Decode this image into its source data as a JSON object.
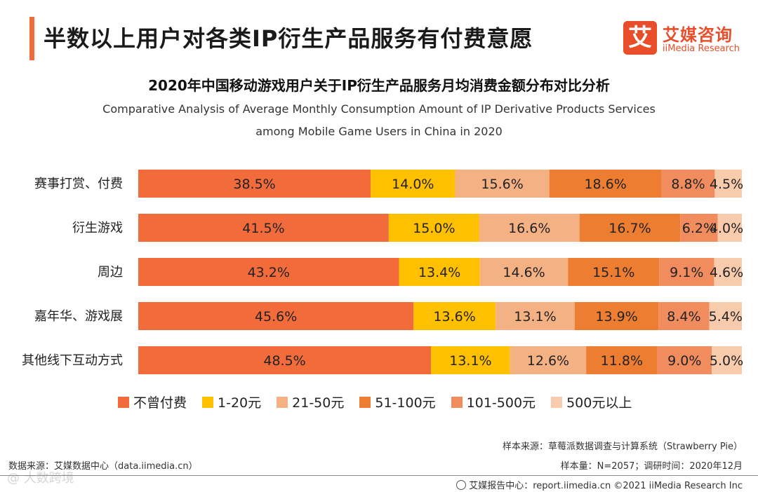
{
  "header": {
    "title": "半数以上用户对各类IP衍生产品服务有付费意愿",
    "logo_mark": "艾",
    "logo_cn": "艾媒咨询",
    "logo_en": "iiMedia Research"
  },
  "chart_data": {
    "type": "bar",
    "orientation": "horizontal",
    "stacked": true,
    "unit": "%",
    "title": "2020年中国移动游戏用户关于IP衍生产品服务月均消费金额分布对比分析",
    "subtitle_line1": "Comparative Analysis of Average Monthly Consumption Amount of IP Derivative Products  Services",
    "subtitle_line2": "among Mobile Game Users in China in 2020",
    "categories": [
      "赛事打赏、付费",
      "衍生游戏",
      "周边",
      "嘉年华、游戏展",
      "其他线下互动方式"
    ],
    "series": [
      {
        "name": "不曾付费",
        "color": "#f26b3a",
        "values": [
          38.5,
          41.5,
          43.2,
          45.6,
          48.5
        ]
      },
      {
        "name": "1-20元",
        "color": "#ffc000",
        "values": [
          14.0,
          15.0,
          13.4,
          13.6,
          13.1
        ]
      },
      {
        "name": "21-50元",
        "color": "#f4b183",
        "values": [
          15.6,
          16.6,
          14.6,
          13.1,
          12.6
        ]
      },
      {
        "name": "51-100元",
        "color": "#ed7d31",
        "values": [
          18.6,
          16.7,
          15.1,
          13.9,
          11.8
        ]
      },
      {
        "name": "101-500元",
        "color": "#f08c5e",
        "values": [
          8.8,
          6.2,
          9.1,
          8.4,
          9.0
        ]
      },
      {
        "name": "500元以上",
        "color": "#f8cbad",
        "values": [
          4.5,
          4.0,
          4.6,
          5.4,
          5.0
        ]
      }
    ],
    "xlim": [
      0,
      100
    ],
    "grid": false,
    "legend_position": "bottom"
  },
  "notes": {
    "data_source": "数据来源：艾媒数据中心（data.iimedia.cn）",
    "sample_source": "样本来源：草莓派数据调查与计算系统（Strawberry Pie）",
    "sample_size": "样本量：N=2057；调研时间：2020年12月"
  },
  "footer": {
    "text": "艾媒报告中心：report.iimedia.cn ©2021  iiMedia Research  Inc",
    "watermark": "@ 大数跨境"
  }
}
